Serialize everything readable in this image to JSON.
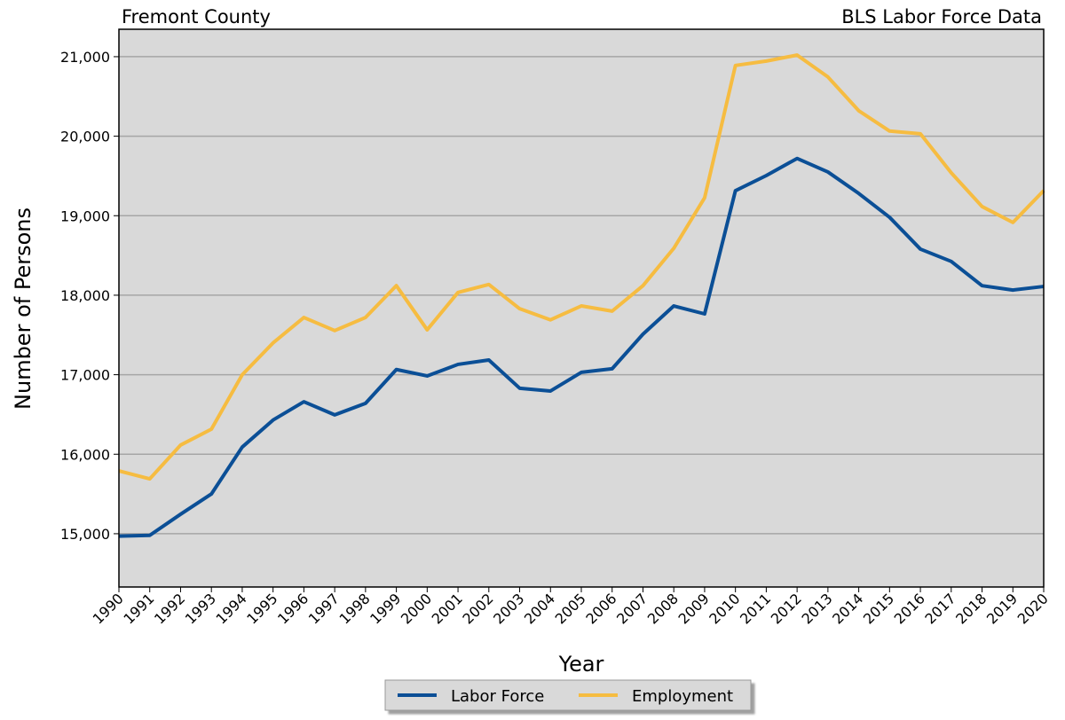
{
  "chart_data": {
    "type": "line",
    "title": "Fremont County",
    "subtitle": "BLS Labor Force Data",
    "x_label": "Year",
    "y_label": "Number of Persons",
    "categories": [
      "1990",
      "1991",
      "1992",
      "1993",
      "1994",
      "1995",
      "1996",
      "1997",
      "1998",
      "1999",
      "2000",
      "2001",
      "2002",
      "2003",
      "2004",
      "2005",
      "2006",
      "2007",
      "2008",
      "2009",
      "2010",
      "2011",
      "2012",
      "2013",
      "2014",
      "2015",
      "2016",
      "2017",
      "2018",
      "2019",
      "2020"
    ],
    "series": [
      {
        "name": "Labor Force",
        "color": "#0b4f96",
        "values": [
          14970,
          14980,
          15245,
          15500,
          16090,
          16430,
          16660,
          16495,
          16640,
          17065,
          16985,
          17130,
          17185,
          16830,
          16795,
          17030,
          17075,
          17510,
          17865,
          17765,
          19315,
          19505,
          19720,
          19550,
          19280,
          18980,
          18580,
          18425,
          18120,
          18065,
          18110
        ]
      },
      {
        "name": "Employment",
        "color": "#f6bc41",
        "values": [
          15790,
          15690,
          16115,
          16315,
          17000,
          17400,
          17720,
          17555,
          17720,
          18120,
          17565,
          18035,
          18135,
          17830,
          17690,
          17865,
          17800,
          18120,
          18590,
          19225,
          20890,
          20945,
          21020,
          20745,
          20320,
          20065,
          20030,
          19540,
          19115,
          18915,
          19315
        ]
      }
    ],
    "ylim": [
      14330,
      21345
    ],
    "yticks": [
      {
        "value": 15000,
        "label": "15,000"
      },
      {
        "value": 16000,
        "label": "16,000"
      },
      {
        "value": 17000,
        "label": "17,000"
      },
      {
        "value": 18000,
        "label": "18,000"
      },
      {
        "value": 19000,
        "label": "19,000"
      },
      {
        "value": 20000,
        "label": "20,000"
      },
      {
        "value": 21000,
        "label": "21,000"
      }
    ],
    "grid": true,
    "legend": "bottom"
  }
}
